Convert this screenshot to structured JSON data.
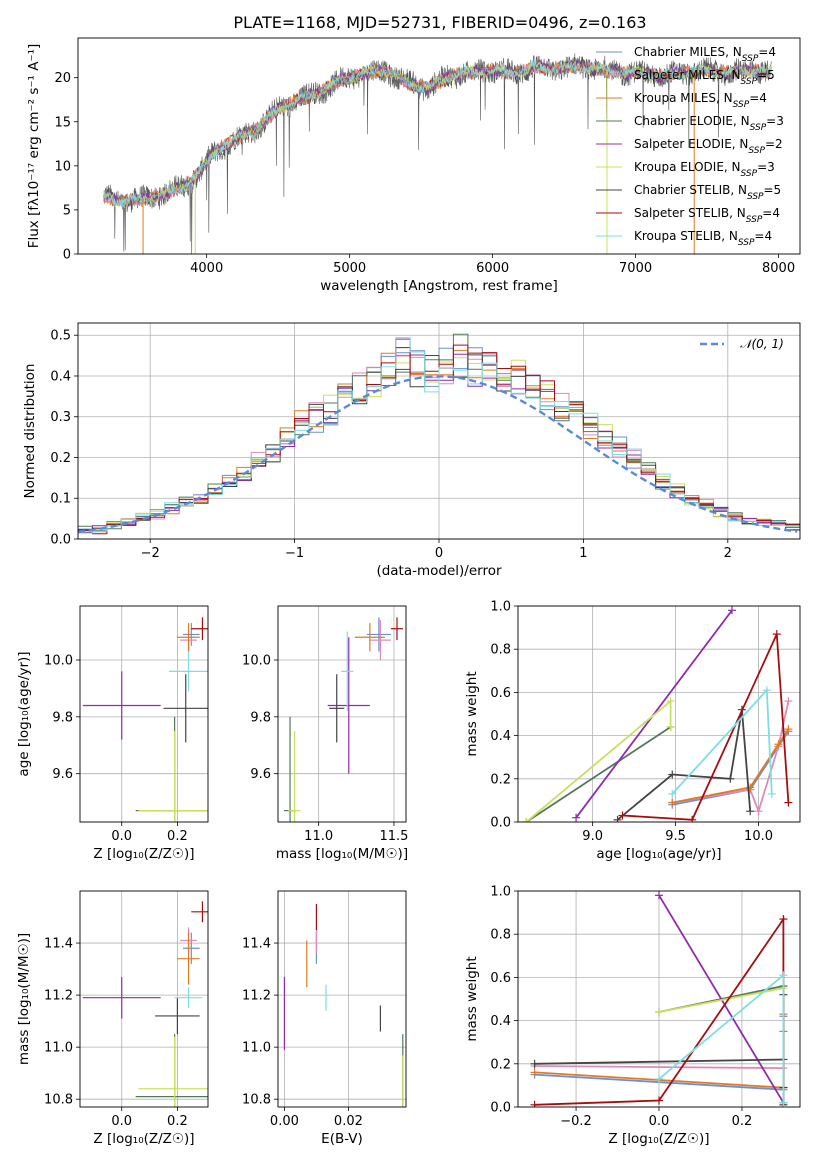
{
  "page": {
    "title": "PLATE=1168, MJD=52731, FIBERID=0496, z=0.163"
  },
  "colors": {
    "Chabrier MILES": "#6a8fd4",
    "Salpeter MILES": "#e08ab8",
    "Kroupa MILES": "#e07a20",
    "Chabrier ELODIE": "#55785a",
    "Salpeter ELODIE": "#8e2cab",
    "Kroupa ELODIE": "#c8e060",
    "Chabrier STELIB": "#444444",
    "Salpeter STELIB": "#a80d0d",
    "Kroupa STELIB": "#7fdde2"
  },
  "chart_data": [
    {
      "id": "spectrum",
      "type": "line",
      "title": "PLATE=1168, MJD=52731, FIBERID=0496, z=0.163",
      "xlabel": "wavelength [Angstrom, rest frame]",
      "ylabel": "Flux [fλ10⁻¹⁷ erg cm⁻² s⁻¹ A⁻¹]",
      "xlim": [
        3100,
        8150
      ],
      "ylim": [
        0,
        24.5
      ],
      "xticks": [
        4000,
        5000,
        6000,
        7000,
        8000
      ],
      "yticks": [
        0,
        5,
        10,
        15,
        20
      ],
      "grid": false,
      "legend_position": "right",
      "x_sampled": [
        3280,
        3400,
        3550,
        3700,
        3850,
        3950,
        4050,
        4200,
        4350,
        4500,
        4650,
        4800,
        4950,
        5100,
        5250,
        5400,
        5550,
        5700,
        5850,
        6000,
        6150,
        6300,
        6450,
        6600,
        6750,
        6900,
        7050,
        7200,
        7350,
        7500,
        7650,
        7800,
        7950
      ],
      "y_sampled": [
        6.5,
        6.0,
        6.2,
        6.8,
        7.8,
        9.2,
        11.5,
        13.0,
        14.2,
        16.5,
        17.5,
        18.5,
        19.8,
        20.5,
        20.8,
        19.5,
        18.8,
        20.2,
        20.6,
        20.9,
        20.5,
        21.2,
        21.0,
        21.3,
        21.0,
        20.6,
        20.5,
        20.2,
        20.6,
        20.8,
        20.5,
        20.9,
        20.6
      ],
      "series": [
        {
          "name": "Chabrier MILES, N_SSP=4"
        },
        {
          "name": "Salpeter MILES, N_SSP=5"
        },
        {
          "name": "Kroupa MILES, N_SSP=4"
        },
        {
          "name": "Chabrier ELODIE, N_SSP=3"
        },
        {
          "name": "Salpeter ELODIE, N_SSP=2"
        },
        {
          "name": "Kroupa ELODIE, N_SSP=3"
        },
        {
          "name": "Chabrier STELIB, N_SSP=5"
        },
        {
          "name": "Salpeter STELIB, N_SSP=4"
        },
        {
          "name": "Kroupa STELIB, N_SSP=4"
        }
      ]
    },
    {
      "id": "residuals",
      "type": "histogram",
      "xlabel": "(data-model)/error",
      "ylabel": "Normed distribution",
      "xlim": [
        -2.5,
        2.5
      ],
      "ylim": [
        0,
        0.53
      ],
      "xticks": [
        -2,
        -1,
        0,
        1,
        2
      ],
      "yticks": [
        0.0,
        0.1,
        0.2,
        0.3,
        0.4,
        0.5
      ],
      "grid": true,
      "legend_position": "top-right",
      "legend": [
        "𝒩(0, 1)"
      ],
      "bin_width": 0.1,
      "bins_center_shape": [
        0.022,
        0.025,
        0.035,
        0.045,
        0.05,
        0.06,
        0.075,
        0.09,
        0.1,
        0.12,
        0.14,
        0.16,
        0.19,
        0.21,
        0.25,
        0.28,
        0.3,
        0.32,
        0.35,
        0.37,
        0.4,
        0.42,
        0.44,
        0.42,
        0.41,
        0.42,
        0.45,
        0.43,
        0.42,
        0.4,
        0.39,
        0.37,
        0.35,
        0.33,
        0.31,
        0.28,
        0.25,
        0.22,
        0.2,
        0.17,
        0.14,
        0.12,
        0.1,
        0.085,
        0.07,
        0.055,
        0.045,
        0.04,
        0.035,
        0.03
      ]
    },
    {
      "id": "age-vs-Z",
      "type": "errorbar",
      "xlabel": "Z [log₁₀(Z/Z☉)]",
      "ylabel": "age  [log₁₀(age/yr)]",
      "xlim": [
        -0.15,
        0.31
      ],
      "ylim": [
        9.43,
        10.19
      ],
      "xticks": [
        0.0,
        0.2
      ],
      "yticks": [
        9.6,
        9.8,
        10.0
      ],
      "grid": true,
      "points": [
        {
          "series": "Chabrier MILES",
          "x": 0.25,
          "y": 10.09,
          "xerr": 0.03,
          "yerr": 0.04
        },
        {
          "series": "Salpeter MILES",
          "x": 0.24,
          "y": 10.07,
          "xerr": 0.03,
          "yerr": 0.04
        },
        {
          "series": "Kroupa MILES",
          "x": 0.24,
          "y": 10.08,
          "xerr": 0.04,
          "yerr": 0.05
        },
        {
          "series": "Chabrier ELODIE",
          "x": 0.19,
          "y": 9.47,
          "xerr": 0.14,
          "yerr": 0.33
        },
        {
          "series": "Salpeter ELODIE",
          "x": 0.0,
          "y": 9.84,
          "xerr": 0.14,
          "yerr": 0.12
        },
        {
          "series": "Kroupa ELODIE",
          "x": 0.19,
          "y": 9.47,
          "xerr": 0.13,
          "yerr": 0.28
        },
        {
          "series": "Chabrier STELIB",
          "x": 0.23,
          "y": 9.83,
          "xerr": 0.08,
          "yerr": 0.12
        },
        {
          "series": "Salpeter STELIB",
          "x": 0.29,
          "y": 10.11,
          "xerr": 0.04,
          "yerr": 0.04
        },
        {
          "series": "Kroupa STELIB",
          "x": 0.24,
          "y": 9.96,
          "xerr": 0.07,
          "yerr": 0.07
        }
      ]
    },
    {
      "id": "age-vs-mass",
      "type": "errorbar",
      "xlabel": "mass [log₁₀(M/M☉)]",
      "ylabel": "",
      "xlim": [
        10.73,
        11.58
      ],
      "ylim": [
        9.43,
        10.19
      ],
      "xticks": [
        11.0,
        11.5
      ],
      "yticks": [
        9.6,
        9.8,
        10.0
      ],
      "grid": true,
      "points": [
        {
          "series": "Chabrier MILES",
          "x": 11.4,
          "y": 10.09,
          "xerr": 0.08,
          "yerr": 0.06
        },
        {
          "series": "Salpeter MILES",
          "x": 11.41,
          "y": 10.07,
          "xerr": 0.07,
          "yerr": 0.07
        },
        {
          "series": "Kroupa MILES",
          "x": 11.34,
          "y": 10.08,
          "xerr": 0.1,
          "yerr": 0.05
        },
        {
          "series": "Chabrier ELODIE",
          "x": 10.81,
          "y": 9.47,
          "xerr": 0.04,
          "yerr": 0.33
        },
        {
          "series": "Salpeter ELODIE",
          "x": 11.2,
          "y": 9.84,
          "xerr": 0.14,
          "yerr": 0.24
        },
        {
          "series": "Kroupa ELODIE",
          "x": 10.84,
          "y": 9.47,
          "xerr": 0.04,
          "yerr": 0.28
        },
        {
          "series": "Chabrier STELIB",
          "x": 11.12,
          "y": 9.83,
          "xerr": 0.05,
          "yerr": 0.12
        },
        {
          "series": "Salpeter STELIB",
          "x": 11.52,
          "y": 10.11,
          "xerr": 0.04,
          "yerr": 0.04
        },
        {
          "series": "Kroupa STELIB",
          "x": 11.19,
          "y": 9.96,
          "xerr": 0.04,
          "yerr": 0.14
        }
      ]
    },
    {
      "id": "weight-vs-age",
      "type": "line",
      "xlabel": "age  [log₁₀(age/yr)]",
      "ylabel": "mass weight",
      "xlim": [
        8.55,
        10.25
      ],
      "ylim": [
        0.0,
        1.0
      ],
      "xticks": [
        9.0,
        9.5,
        10.0
      ],
      "yticks": [
        0.0,
        0.2,
        0.4,
        0.6,
        0.8,
        1.0
      ],
      "grid": true,
      "series": [
        {
          "name": "Chabrier MILES",
          "x": [
            9.48,
            9.95,
            10.12,
            10.18
          ],
          "y": [
            0.08,
            0.15,
            0.35,
            0.42
          ]
        },
        {
          "name": "Salpeter MILES",
          "x": [
            9.48,
            9.95,
            10.0,
            10.12,
            10.18
          ],
          "y": [
            0.09,
            0.15,
            0.05,
            0.35,
            0.56
          ]
        },
        {
          "name": "Kroupa MILES",
          "x": [
            9.48,
            9.95,
            10.12,
            10.18
          ],
          "y": [
            0.09,
            0.16,
            0.36,
            0.43
          ]
        },
        {
          "name": "Chabrier ELODIE",
          "x": [
            8.6,
            9.47
          ],
          "y": [
            0.0,
            0.44
          ]
        },
        {
          "name": "Salpeter ELODIE",
          "x": [
            8.9,
            9.84
          ],
          "y": [
            0.02,
            0.98
          ]
        },
        {
          "name": "Kroupa ELODIE",
          "x": [
            8.6,
            9.47,
            9.47
          ],
          "y": [
            0.0,
            0.56,
            0.44
          ]
        },
        {
          "name": "Chabrier STELIB",
          "x": [
            9.15,
            9.48,
            9.83,
            9.9,
            9.95
          ],
          "y": [
            0.01,
            0.22,
            0.2,
            0.52,
            0.05
          ]
        },
        {
          "name": "Salpeter STELIB",
          "x": [
            9.18,
            9.6,
            10.11,
            10.18
          ],
          "y": [
            0.03,
            0.01,
            0.87,
            0.09
          ]
        },
        {
          "name": "Kroupa STELIB",
          "x": [
            9.48,
            10.05,
            10.08
          ],
          "y": [
            0.13,
            0.61,
            0.13
          ]
        }
      ]
    },
    {
      "id": "mass-vs-Z",
      "type": "errorbar",
      "xlabel": "Z [log₁₀(Z/Z☉)]",
      "ylabel": "mass [log₁₀(M/M☉)]",
      "xlim": [
        -0.15,
        0.31
      ],
      "ylim": [
        10.77,
        11.6
      ],
      "xticks": [
        0.0,
        0.2
      ],
      "yticks": [
        10.8,
        11.0,
        11.2,
        11.4
      ],
      "grid": true,
      "points": [
        {
          "series": "Chabrier MILES",
          "x": 0.25,
          "y": 11.38,
          "xerr": 0.03,
          "yerr": 0.06
        },
        {
          "series": "Salpeter MILES",
          "x": 0.24,
          "y": 11.41,
          "xerr": 0.03,
          "yerr": 0.05
        },
        {
          "series": "Kroupa MILES",
          "x": 0.24,
          "y": 11.34,
          "xerr": 0.04,
          "yerr": 0.1
        },
        {
          "series": "Chabrier ELODIE",
          "x": 0.19,
          "y": 10.81,
          "xerr": 0.14,
          "yerr": 0.24
        },
        {
          "series": "Salpeter ELODIE",
          "x": 0.0,
          "y": 11.19,
          "xerr": 0.14,
          "yerr": 0.08
        },
        {
          "series": "Kroupa ELODIE",
          "x": 0.19,
          "y": 10.84,
          "xerr": 0.13,
          "yerr": 0.2
        },
        {
          "series": "Chabrier STELIB",
          "x": 0.2,
          "y": 11.12,
          "xerr": 0.08,
          "yerr": 0.07
        },
        {
          "series": "Salpeter STELIB",
          "x": 0.29,
          "y": 11.52,
          "xerr": 0.04,
          "yerr": 0.04
        },
        {
          "series": "Kroupa STELIB",
          "x": 0.24,
          "y": 11.19,
          "xerr": 0.05,
          "yerr": 0.04
        }
      ]
    },
    {
      "id": "mass-vs-EBV",
      "type": "errorbar",
      "xlabel": "E(B-V)",
      "ylabel": "",
      "xlim": [
        -0.002,
        0.038
      ],
      "ylim": [
        10.77,
        11.6
      ],
      "xticks": [
        0.0,
        0.02
      ],
      "yticks": [
        10.8,
        11.0,
        11.2,
        11.4
      ],
      "grid": true,
      "points": [
        {
          "series": "Chabrier MILES",
          "x": 0.01,
          "y": 11.38,
          "xerr": 0,
          "yerr": 0.06
        },
        {
          "series": "Salpeter MILES",
          "x": 0.01,
          "y": 11.41,
          "xerr": 0,
          "yerr": 0.05
        },
        {
          "series": "Kroupa MILES",
          "x": 0.007,
          "y": 11.32,
          "xerr": 0,
          "yerr": 0.09
        },
        {
          "series": "Chabrier ELODIE",
          "x": 0.037,
          "y": 10.81,
          "xerr": 0,
          "yerr": 0.24
        },
        {
          "series": "Salpeter ELODIE",
          "x": 0.0,
          "y": 11.13,
          "xerr": 0,
          "yerr": 0.14
        },
        {
          "series": "Kroupa ELODIE",
          "x": 0.037,
          "y": 10.84,
          "xerr": 0,
          "yerr": 0.13
        },
        {
          "series": "Chabrier STELIB",
          "x": 0.03,
          "y": 11.11,
          "xerr": 0,
          "yerr": 0.05
        },
        {
          "series": "Salpeter STELIB",
          "x": 0.01,
          "y": 11.5,
          "xerr": 0,
          "yerr": 0.05
        },
        {
          "series": "Kroupa STELIB",
          "x": 0.013,
          "y": 11.19,
          "xerr": 0,
          "yerr": 0.05
        }
      ]
    },
    {
      "id": "weight-vs-Z",
      "type": "line",
      "xlabel": "Z [log₁₀(Z/Z☉)]",
      "ylabel": "mass weight",
      "xlim": [
        -0.34,
        0.34
      ],
      "ylim": [
        0.0,
        1.0
      ],
      "xticks": [
        -0.2,
        0.0,
        0.2
      ],
      "yticks": [
        0.0,
        0.2,
        0.4,
        0.6,
        0.8,
        1.0
      ],
      "grid": true,
      "series": [
        {
          "name": "Chabrier MILES",
          "x": [
            -0.3,
            0.3,
            0.3,
            0.3
          ],
          "y": [
            0.15,
            0.08,
            0.35,
            0.42
          ]
        },
        {
          "name": "Salpeter MILES",
          "x": [
            -0.3,
            0.3,
            0.3
          ],
          "y": [
            0.19,
            0.18,
            0.56
          ]
        },
        {
          "name": "Kroupa MILES",
          "x": [
            -0.3,
            0.3,
            0.3
          ],
          "y": [
            0.16,
            0.09,
            0.43
          ]
        },
        {
          "name": "Chabrier ELODIE",
          "x": [
            0.0,
            0.3
          ],
          "y": [
            0.44,
            0.56
          ]
        },
        {
          "name": "Salpeter ELODIE",
          "x": [
            0.0,
            0.3
          ],
          "y": [
            0.98,
            0.02
          ]
        },
        {
          "name": "Kroupa ELODIE",
          "x": [
            0.0,
            0.3,
            0.3
          ],
          "y": [
            0.44,
            0.55,
            0.01
          ]
        },
        {
          "name": "Chabrier STELIB",
          "x": [
            -0.3,
            0.3,
            0.3,
            0.3
          ],
          "y": [
            0.2,
            0.22,
            0.52,
            0.01
          ]
        },
        {
          "name": "Salpeter STELIB",
          "x": [
            -0.3,
            0.0,
            0.3,
            0.3
          ],
          "y": [
            0.01,
            0.03,
            0.87,
            0.09
          ]
        },
        {
          "name": "Kroupa STELIB",
          "x": [
            0.0,
            0.3,
            0.3
          ],
          "y": [
            0.13,
            0.61,
            0.02
          ]
        }
      ]
    }
  ]
}
